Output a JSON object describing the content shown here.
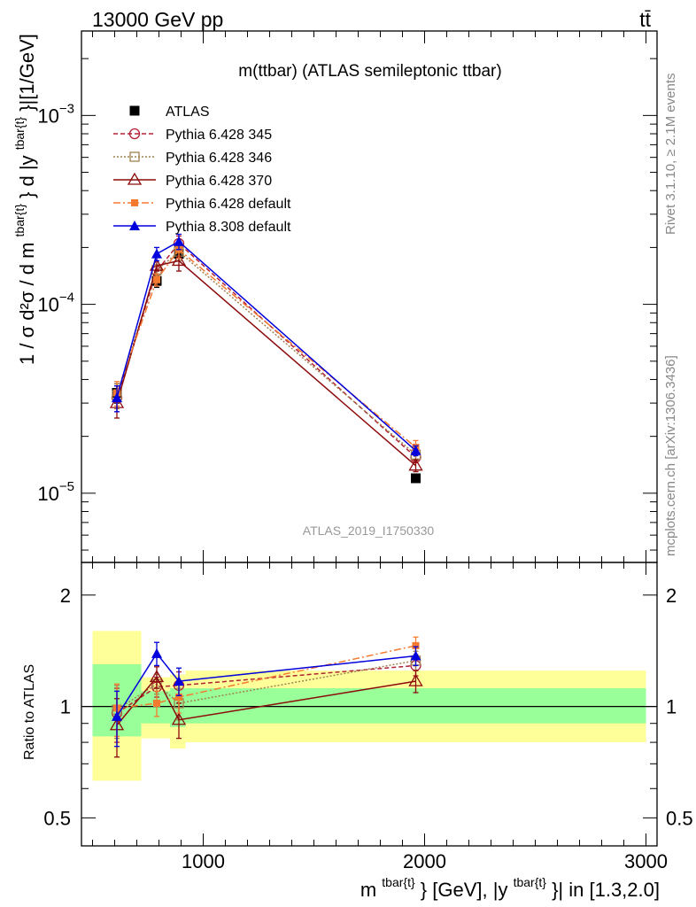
{
  "header": {
    "left": "13000 GeV pp",
    "right": "tt̄"
  },
  "side_labels": {
    "rivet": "Rivet 3.1.10, ≥ 2.1M events",
    "mcplots": "mcplots.cern.ch [arXiv:1306.3436]"
  },
  "plot_title": "m(ttbar) (ATLAS semileptonic ttbar)",
  "watermark": "ATLAS_2019_I1750330",
  "colors": {
    "atlas": "#000000",
    "py345": "#b22234",
    "py346": "#a08050",
    "py370": "#8b0a0a",
    "py6def": "#f47a30",
    "py8def": "#0000dd",
    "band_inner": "#99ff99",
    "band_outer": "#ffff99"
  },
  "chart_data": [
    {
      "type": "scatter",
      "panel": "main",
      "ylabel_main": "1 / σ d²σ / d m",
      "ylabel_sup1": "tbar{t}",
      "ylabel_mid": "} d |y",
      "ylabel_sup2": "tbar{t}",
      "ylabel_end": "}|[1/GeV]",
      "yscale": "log",
      "xlim": [
        450,
        3050
      ],
      "ylim": [
        4.3e-06,
        0.0028
      ],
      "yticks": [
        {
          "value": 1e-05,
          "base": "10",
          "exp": "−5"
        },
        {
          "value": 0.0001,
          "base": "10",
          "exp": "−4"
        },
        {
          "value": 0.001,
          "base": "10",
          "exp": "−3"
        }
      ],
      "x": [
        610,
        790,
        890,
        1960
      ],
      "series": [
        {
          "name": "ATLAS",
          "values": [
            3.4e-05,
            0.000133,
            0.000185,
            1.2e-05
          ],
          "err": [
            4e-06,
            1e-05,
            1.5e-05,
            5e-07
          ],
          "marker": "square-filled",
          "line": "none"
        },
        {
          "name": "Pythia 6.428 345",
          "values": [
            3.2e-05,
            0.00015,
            0.00021,
            1.55e-05
          ],
          "err": [
            5e-06,
            1e-05,
            2e-05,
            1e-06
          ],
          "marker": "circle-open",
          "line": "dashed"
        },
        {
          "name": "Pythia 6.428 346",
          "values": [
            3.3e-05,
            0.000152,
            0.00019,
            1.6e-05
          ],
          "err": [
            5e-06,
            1e-05,
            2e-05,
            1e-06
          ],
          "marker": "square-open",
          "line": "dotted"
        },
        {
          "name": "Pythia 6.428 370",
          "values": [
            3e-05,
            0.00016,
            0.00017,
            1.4e-05
          ],
          "err": [
            5e-06,
            1e-05,
            2e-05,
            1e-06
          ],
          "marker": "triangle-open",
          "line": "solid"
        },
        {
          "name": "Pythia 6.428 default",
          "values": [
            3.4e-05,
            0.000135,
            0.000195,
            1.75e-05
          ],
          "err": [
            5e-06,
            1e-05,
            2e-05,
            1.5e-06
          ],
          "marker": "square-filled-small",
          "line": "dashdot"
        },
        {
          "name": "Pythia 8.308 default",
          "values": [
            3.2e-05,
            0.000185,
            0.000215,
            1.68e-05
          ],
          "err": [
            5e-06,
            1.5e-05,
            2e-05,
            1e-06
          ],
          "marker": "triangle-filled",
          "line": "solid"
        }
      ]
    },
    {
      "type": "scatter",
      "panel": "ratio",
      "ylabel": "Ratio to ATLAS",
      "yscale": "log",
      "xlim": [
        450,
        3050
      ],
      "ylim": [
        0.42,
        2.45
      ],
      "yticks": [
        {
          "value": 0.5,
          "label": "0.5"
        },
        {
          "value": 1,
          "label": "1"
        },
        {
          "value": 2,
          "label": "2"
        }
      ],
      "xlabel_main": "m",
      "xlabel_sup1": "tbar{t}",
      "xlabel_mid": "} [GeV], |y",
      "xlabel_sup2": "tbar{t}",
      "xlabel_end": "}| in [1.3,2.0]",
      "xticks": [
        {
          "value": 1000,
          "label": "1000"
        },
        {
          "value": 2000,
          "label": "2000"
        },
        {
          "value": 3000,
          "label": "3000"
        }
      ],
      "bands": [
        {
          "x": [
            500,
            720
          ],
          "inner": [
            0.83,
            1.3
          ],
          "outer": [
            0.63,
            1.6
          ]
        },
        {
          "x": [
            720,
            850
          ],
          "inner": [
            0.9,
            1.1
          ],
          "outer": [
            0.82,
            1.2
          ]
        },
        {
          "x": [
            850,
            920
          ],
          "inner": [
            0.88,
            1.12
          ],
          "outer": [
            0.77,
            1.22
          ]
        },
        {
          "x": [
            920,
            3000
          ],
          "inner": [
            0.9,
            1.12
          ],
          "outer": [
            0.8,
            1.25
          ]
        }
      ],
      "x": [
        610,
        790,
        890,
        1960
      ],
      "series": [
        {
          "name": "Pythia 6.428 345",
          "values": [
            0.96,
            1.13,
            1.14,
            1.29
          ],
          "err": [
            0.16,
            0.07,
            0.1,
            0.08
          ]
        },
        {
          "name": "Pythia 6.428 346",
          "values": [
            0.98,
            1.15,
            1.02,
            1.33
          ],
          "err": [
            0.16,
            0.07,
            0.1,
            0.08
          ]
        },
        {
          "name": "Pythia 6.428 370",
          "values": [
            0.89,
            1.2,
            0.92,
            1.17
          ],
          "err": [
            0.16,
            0.08,
            0.1,
            0.08
          ]
        },
        {
          "name": "Pythia 6.428 default",
          "values": [
            0.99,
            1.02,
            1.06,
            1.46
          ],
          "err": [
            0.16,
            0.08,
            0.1,
            0.08
          ]
        },
        {
          "name": "Pythia 8.308 default",
          "values": [
            0.94,
            1.39,
            1.17,
            1.37
          ],
          "err": [
            0.16,
            0.1,
            0.1,
            0.08
          ]
        }
      ]
    }
  ]
}
